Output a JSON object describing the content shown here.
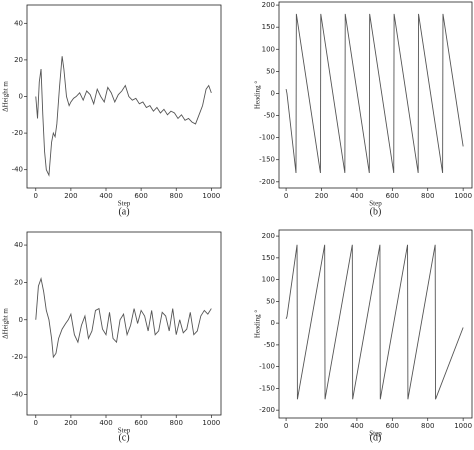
{
  "chart_data": [
    {
      "type": "line",
      "caption": "(a)",
      "x_label": "Step",
      "y_label": "ΔHeight m",
      "color": "#555555",
      "xlim": [
        -50,
        1055
      ],
      "ylim": [
        -50,
        50
      ],
      "xticks": [
        0,
        200,
        400,
        600,
        800,
        1000
      ],
      "yticks": [
        -40,
        -20,
        0,
        20,
        40
      ],
      "x": [
        0,
        10,
        20,
        30,
        40,
        50,
        60,
        75,
        90,
        100,
        110,
        120,
        135,
        150,
        160,
        175,
        190,
        200,
        215,
        230,
        250,
        270,
        290,
        310,
        330,
        350,
        370,
        390,
        410,
        430,
        450,
        470,
        490,
        510,
        530,
        550,
        570,
        590,
        610,
        630,
        650,
        670,
        690,
        710,
        730,
        750,
        770,
        790,
        810,
        830,
        850,
        870,
        890,
        910,
        930,
        950,
        970,
        985,
        1000
      ],
      "values": [
        0,
        -12,
        8,
        15,
        -10,
        -30,
        -40,
        -43,
        -25,
        -20,
        -22,
        -15,
        5,
        22,
        15,
        0,
        -5,
        -3,
        -1,
        0,
        2,
        -2,
        3,
        1,
        -4,
        4,
        0,
        -3,
        5,
        2,
        -3,
        1,
        3,
        6,
        0,
        -2,
        -1,
        -4,
        -3,
        -6,
        -5,
        -8,
        -6,
        -9,
        -7,
        -10,
        -8,
        -9,
        -12,
        -10,
        -13,
        -12,
        -14,
        -15,
        -10,
        -5,
        4,
        6,
        2
      ]
    },
    {
      "type": "line",
      "caption": "(b)",
      "x_label": "Step",
      "y_label": "Heading °",
      "color": "#555555",
      "xlim": [
        -40,
        1050
      ],
      "ylim": [
        -214,
        207
      ],
      "xticks": [
        0,
        200,
        400,
        600,
        800,
        1000
      ],
      "yticks": [
        -200,
        -150,
        -100,
        -50,
        0,
        50,
        100,
        150,
        200
      ],
      "x": [
        0,
        5,
        56,
        58,
        194,
        196,
        332,
        334,
        470,
        472,
        608,
        610,
        746,
        748,
        884,
        886,
        1000
      ],
      "values": [
        10,
        0,
        -180,
        180,
        -180,
        180,
        -180,
        180,
        -180,
        180,
        -180,
        180,
        -180,
        180,
        -180,
        180,
        -120
      ]
    },
    {
      "type": "line",
      "caption": "(c)",
      "x_label": "Step",
      "y_label": "ΔHeight m",
      "color": "#555555",
      "xlim": [
        -50,
        1055
      ],
      "ylim": [
        -51,
        47
      ],
      "xticks": [
        0,
        200,
        400,
        600,
        800,
        1000
      ],
      "yticks": [
        -40,
        -20,
        0,
        20,
        40
      ],
      "x": [
        0,
        15,
        30,
        45,
        60,
        75,
        90,
        100,
        115,
        130,
        150,
        170,
        185,
        200,
        220,
        240,
        260,
        280,
        300,
        320,
        340,
        360,
        380,
        400,
        420,
        440,
        460,
        480,
        500,
        520,
        540,
        560,
        580,
        600,
        620,
        640,
        660,
        680,
        700,
        720,
        740,
        760,
        780,
        800,
        820,
        840,
        860,
        880,
        900,
        920,
        940,
        960,
        980,
        1000
      ],
      "values": [
        0,
        18,
        22,
        15,
        5,
        0,
        -10,
        -20,
        -18,
        -10,
        -5,
        -2,
        0,
        3,
        -8,
        -12,
        -3,
        2,
        -10,
        -6,
        5,
        6,
        -5,
        -8,
        4,
        -10,
        -12,
        0,
        3,
        -8,
        -3,
        6,
        -2,
        5,
        2,
        -6,
        5,
        -8,
        -6,
        4,
        2,
        -6,
        6,
        -8,
        0,
        -7,
        -5,
        4,
        -8,
        -6,
        2,
        5,
        3,
        6
      ]
    },
    {
      "type": "line",
      "caption": "(d)",
      "x_label": "Step",
      "y_label": "Heading °",
      "color": "#555555",
      "xlim": [
        -40,
        1050
      ],
      "ylim": [
        -218,
        214
      ],
      "xticks": [
        0,
        200,
        400,
        600,
        800,
        1000
      ],
      "yticks": [
        -200,
        -150,
        -100,
        -50,
        0,
        50,
        100,
        150,
        200
      ],
      "x": [
        0,
        5,
        62,
        64,
        218,
        220,
        374,
        376,
        530,
        532,
        686,
        688,
        842,
        844,
        1000
      ],
      "values": [
        10,
        15,
        180,
        -175,
        180,
        -175,
        180,
        -175,
        180,
        -175,
        180,
        -175,
        180,
        -175,
        -10
      ]
    }
  ]
}
